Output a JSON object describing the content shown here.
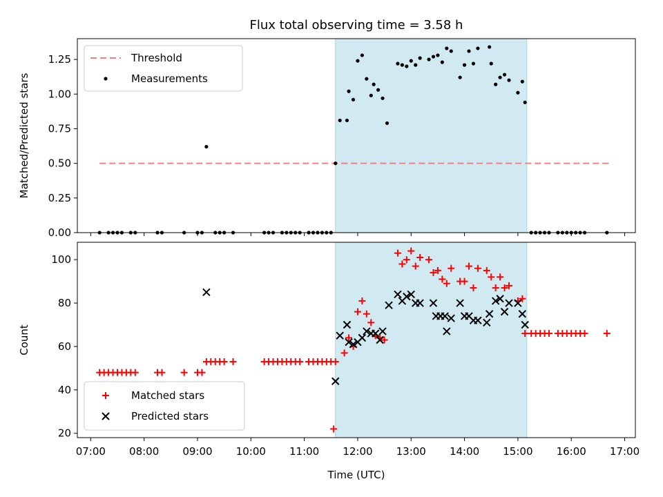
{
  "chart_data": {
    "type": "scatter",
    "title": "Flux total observing time = 3.58 h",
    "xlabel": "Time (UTC)",
    "x_ticks": [
      "07:00",
      "08:00",
      "09:00",
      "10:00",
      "11:00",
      "12:00",
      "13:00",
      "14:00",
      "15:00",
      "16:00",
      "17:00"
    ],
    "highlight_span": {
      "start": "11:35",
      "end": "15:10",
      "color": "#d1e9f0"
    },
    "panels": [
      {
        "id": "ratio",
        "ylabel": "Matched/Predicted stars",
        "ylim": [
          0,
          1.4
        ],
        "yticks": [
          "0.00",
          "0.25",
          "0.50",
          "0.75",
          "1.00",
          "1.25"
        ],
        "legend": {
          "placement": "upper-left",
          "entries": [
            "Threshold",
            "Measurements"
          ]
        },
        "threshold": {
          "name": "Threshold",
          "value": 0.5,
          "x_start": "07:10",
          "x_end": "16:45",
          "color": "#f08080",
          "style": "dashed"
        },
        "measurements": {
          "name": "Measurements",
          "color": "#000000",
          "points": [
            [
              "07:10",
              0
            ],
            [
              "07:20",
              0
            ],
            [
              "07:25",
              0
            ],
            [
              "07:30",
              0
            ],
            [
              "07:35",
              0
            ],
            [
              "07:45",
              0
            ],
            [
              "07:50",
              0
            ],
            [
              "08:15",
              0
            ],
            [
              "08:20",
              0
            ],
            [
              "08:45",
              0
            ],
            [
              "09:00",
              0
            ],
            [
              "09:05",
              0
            ],
            [
              "09:10",
              0.62
            ],
            [
              "09:20",
              0
            ],
            [
              "09:25",
              0
            ],
            [
              "09:30",
              0
            ],
            [
              "09:40",
              0
            ],
            [
              "10:15",
              0
            ],
            [
              "10:20",
              0
            ],
            [
              "10:25",
              0
            ],
            [
              "10:35",
              0
            ],
            [
              "10:40",
              0
            ],
            [
              "10:45",
              0
            ],
            [
              "10:50",
              0
            ],
            [
              "10:55",
              0
            ],
            [
              "11:05",
              0
            ],
            [
              "11:10",
              0
            ],
            [
              "11:15",
              0
            ],
            [
              "11:20",
              0
            ],
            [
              "11:25",
              0
            ],
            [
              "11:30",
              0
            ],
            [
              "11:35",
              0.5
            ],
            [
              "11:40",
              0.81
            ],
            [
              "11:48",
              0.81
            ],
            [
              "11:50",
              1.02
            ],
            [
              "11:55",
              0.96
            ],
            [
              "12:00",
              1.24
            ],
            [
              "12:05",
              1.28
            ],
            [
              "12:10",
              1.11
            ],
            [
              "12:15",
              0.99
            ],
            [
              "12:18",
              1.07
            ],
            [
              "12:23",
              1.03
            ],
            [
              "12:28",
              0.97
            ],
            [
              "12:33",
              0.79
            ],
            [
              "12:45",
              1.22
            ],
            [
              "12:50",
              1.21
            ],
            [
              "12:55",
              1.2
            ],
            [
              "13:00",
              1.24
            ],
            [
              "13:05",
              1.21
            ],
            [
              "13:10",
              1.26
            ],
            [
              "13:20",
              1.25
            ],
            [
              "13:25",
              1.27
            ],
            [
              "13:30",
              1.28
            ],
            [
              "13:35",
              1.23
            ],
            [
              "13:40",
              1.33
            ],
            [
              "13:45",
              1.31
            ],
            [
              "13:55",
              1.12
            ],
            [
              "14:00",
              1.21
            ],
            [
              "14:05",
              1.31
            ],
            [
              "14:10",
              1.22
            ],
            [
              "14:15",
              1.33
            ],
            [
              "14:28",
              1.34
            ],
            [
              "14:30",
              1.22
            ],
            [
              "14:35",
              1.07
            ],
            [
              "14:40",
              1.12
            ],
            [
              "14:45",
              1.14
            ],
            [
              "14:50",
              1.1
            ],
            [
              "15:00",
              1.01
            ],
            [
              "15:05",
              1.09
            ],
            [
              "15:08",
              0.94
            ],
            [
              "15:15",
              0
            ],
            [
              "15:20",
              0
            ],
            [
              "15:25",
              0
            ],
            [
              "15:30",
              0
            ],
            [
              "15:35",
              0
            ],
            [
              "15:45",
              0
            ],
            [
              "15:50",
              0
            ],
            [
              "15:55",
              0
            ],
            [
              "16:00",
              0
            ],
            [
              "16:05",
              0
            ],
            [
              "16:10",
              0
            ],
            [
              "16:15",
              0
            ],
            [
              "16:40",
              0
            ]
          ]
        }
      },
      {
        "id": "count",
        "ylabel": "Count",
        "ylim": [
          18,
          108
        ],
        "yticks": [
          "20",
          "40",
          "60",
          "80",
          "100"
        ],
        "legend": {
          "placement": "lower-left",
          "entries": [
            "Matched stars",
            "Predicted stars"
          ]
        },
        "series": [
          {
            "name": "Matched stars",
            "marker": "plus",
            "color": "#ff0000",
            "points": [
              [
                "07:10",
                48
              ],
              [
                "07:15",
                48
              ],
              [
                "07:20",
                48
              ],
              [
                "07:25",
                48
              ],
              [
                "07:30",
                48
              ],
              [
                "07:35",
                48
              ],
              [
                "07:40",
                48
              ],
              [
                "07:45",
                48
              ],
              [
                "07:50",
                48
              ],
              [
                "08:15",
                48
              ],
              [
                "08:20",
                48
              ],
              [
                "08:45",
                48
              ],
              [
                "09:00",
                48
              ],
              [
                "09:05",
                48
              ],
              [
                "09:10",
                53
              ],
              [
                "09:15",
                53
              ],
              [
                "09:20",
                53
              ],
              [
                "09:25",
                53
              ],
              [
                "09:30",
                53
              ],
              [
                "09:40",
                53
              ],
              [
                "10:15",
                53
              ],
              [
                "10:20",
                53
              ],
              [
                "10:25",
                53
              ],
              [
                "10:30",
                53
              ],
              [
                "10:35",
                53
              ],
              [
                "10:40",
                53
              ],
              [
                "10:45",
                53
              ],
              [
                "10:50",
                53
              ],
              [
                "10:55",
                53
              ],
              [
                "11:05",
                53
              ],
              [
                "11:10",
                53
              ],
              [
                "11:15",
                53
              ],
              [
                "11:20",
                53
              ],
              [
                "11:25",
                53
              ],
              [
                "11:30",
                53
              ],
              [
                "11:35",
                53
              ],
              [
                "11:33",
                22
              ],
              [
                "11:45",
                57
              ],
              [
                "11:50",
                64
              ],
              [
                "11:55",
                60
              ],
              [
                "12:00",
                76
              ],
              [
                "12:05",
                81
              ],
              [
                "12:10",
                75
              ],
              [
                "12:15",
                71
              ],
              [
                "12:20",
                65
              ],
              [
                "12:25",
                64
              ],
              [
                "12:30",
                63
              ],
              [
                "12:45",
                103
              ],
              [
                "12:50",
                98
              ],
              [
                "12:55",
                100
              ],
              [
                "13:00",
                104
              ],
              [
                "13:05",
                97
              ],
              [
                "13:10",
                101
              ],
              [
                "13:20",
                100
              ],
              [
                "13:25",
                94
              ],
              [
                "13:30",
                95
              ],
              [
                "13:35",
                91
              ],
              [
                "13:40",
                89
              ],
              [
                "13:45",
                96
              ],
              [
                "13:55",
                90
              ],
              [
                "14:00",
                90
              ],
              [
                "14:05",
                97
              ],
              [
                "14:10",
                87
              ],
              [
                "14:15",
                96
              ],
              [
                "14:25",
                95
              ],
              [
                "14:30",
                92
              ],
              [
                "14:35",
                87
              ],
              [
                "14:40",
                92
              ],
              [
                "14:45",
                87
              ],
              [
                "14:50",
                88
              ],
              [
                "15:00",
                81
              ],
              [
                "15:05",
                82
              ],
              [
                "15:08",
                66
              ],
              [
                "15:15",
                66
              ],
              [
                "15:20",
                66
              ],
              [
                "15:25",
                66
              ],
              [
                "15:30",
                66
              ],
              [
                "15:35",
                66
              ],
              [
                "15:45",
                66
              ],
              [
                "15:50",
                66
              ],
              [
                "15:55",
                66
              ],
              [
                "16:00",
                66
              ],
              [
                "16:05",
                66
              ],
              [
                "16:10",
                66
              ],
              [
                "16:15",
                66
              ],
              [
                "16:40",
                66
              ]
            ]
          },
          {
            "name": "Predicted stars",
            "marker": "x",
            "color": "#000000",
            "points": [
              [
                "09:10",
                85
              ],
              [
                "11:35",
                44
              ],
              [
                "11:40",
                65
              ],
              [
                "11:48",
                70
              ],
              [
                "11:50",
                62
              ],
              [
                "11:55",
                61
              ],
              [
                "12:00",
                62
              ],
              [
                "12:05",
                64
              ],
              [
                "12:10",
                67
              ],
              [
                "12:15",
                66
              ],
              [
                "12:20",
                66
              ],
              [
                "12:25",
                63
              ],
              [
                "12:28",
                67
              ],
              [
                "12:35",
                79
              ],
              [
                "12:45",
                84
              ],
              [
                "12:50",
                81
              ],
              [
                "12:55",
                83
              ],
              [
                "13:00",
                84
              ],
              [
                "13:05",
                80
              ],
              [
                "13:10",
                80
              ],
              [
                "13:25",
                80
              ],
              [
                "13:28",
                74
              ],
              [
                "13:33",
                74
              ],
              [
                "13:38",
                74
              ],
              [
                "13:40",
                67
              ],
              [
                "13:45",
                73
              ],
              [
                "13:55",
                80
              ],
              [
                "14:00",
                74
              ],
              [
                "14:05",
                74
              ],
              [
                "14:10",
                72
              ],
              [
                "14:15",
                72
              ],
              [
                "14:25",
                71
              ],
              [
                "14:28",
                75
              ],
              [
                "14:35",
                81
              ],
              [
                "14:40",
                82
              ],
              [
                "14:45",
                76
              ],
              [
                "14:50",
                80
              ],
              [
                "15:00",
                80
              ],
              [
                "15:05",
                75
              ],
              [
                "15:08",
                70
              ]
            ]
          }
        ]
      }
    ]
  }
}
